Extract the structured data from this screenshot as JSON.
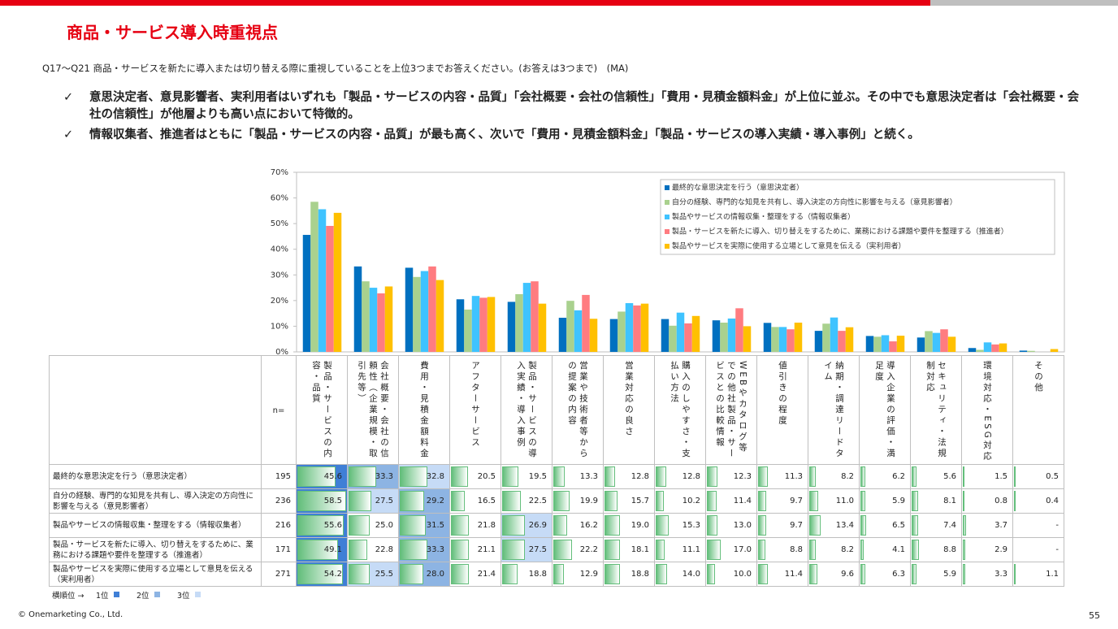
{
  "slide": {
    "title": "商品・サービス導入時重視点",
    "question": "Q17～Q21 商品・サービスを新たに導入または切り替える際に重視していることを上位3つまでお答えください。(お答えは3つまで)　(MA)",
    "bullets": [
      "意思決定者、意見影響者、実利用者はいずれも「製品・サービスの内容・品質」「会社概要・会社の信頼性」「費用・見積金額料金」が上位に並ぶ。その中でも意思決定者は「会社概要・会社の信頼性」が他層よりも高い点において特徴的。",
      "情報収集者、推進者はともに「製品・サービスの内容・品質」が最も高く、次いで「費用・見積金額料金」「製品・サービスの導入実績・導入事例」と続く。"
    ],
    "bullet_mark": "✓",
    "copyright": "© Onemarketing Co., Ltd.",
    "page_number": 55
  },
  "chart_data": {
    "type": "bar",
    "categories": [
      "製品・サービスの内容・品質",
      "会社概要・会社の信頼性（企業規模・取引先等）",
      "費用・見積金額料金",
      "アフターサービス",
      "製品・サービスの導入実績・導入事例",
      "営業や技術者等からの提案の内容",
      "営業対応の良さ",
      "購入のしやすさ・支払い方法",
      "WEBやカタログ等での他社製品・サービスとの比較情報",
      "値引きの程度",
      "納期・調達リードタイム",
      "導入企業の評価・満足度",
      "セキュリティ・法規制対応",
      "環境対応・ESG対応",
      "その他"
    ],
    "series": [
      {
        "name": "最終的な意思決定を行う（意思決定者）",
        "color": "#0070c0",
        "n": 195,
        "values": [
          45.6,
          33.3,
          32.8,
          20.5,
          19.5,
          13.3,
          12.8,
          12.8,
          12.3,
          11.3,
          8.2,
          6.2,
          5.6,
          1.5,
          0.5
        ],
        "value_labels": [
          "45.6",
          "33.3",
          "32.8",
          "20.5",
          "19.5",
          "13.3",
          "12.8",
          "12.8",
          "12.3",
          "11.3",
          "8.2",
          "6.2",
          "5.6",
          "1.5",
          "0.5"
        ]
      },
      {
        "name": "自分の経験、専門的な知見を共有し、導入決定の方向性に影響を与える（意見影響者）",
        "color": "#a9d18e",
        "n": 236,
        "values": [
          58.5,
          27.5,
          29.2,
          16.5,
          22.5,
          19.9,
          15.7,
          10.2,
          11.4,
          9.7,
          11.0,
          5.9,
          8.1,
          0.8,
          0.4
        ],
        "value_labels": [
          "58.5",
          "27.5",
          "29.2",
          "16.5",
          "22.5",
          "19.9",
          "15.7",
          "10.2",
          "11.4",
          "9.7",
          "11.0",
          "5.9",
          "8.1",
          "0.8",
          "0.4"
        ]
      },
      {
        "name": "製品やサービスの情報収集・整理をする（情報収集者）",
        "color": "#3fc3ff",
        "n": 216,
        "values": [
          55.6,
          25.0,
          31.5,
          21.8,
          26.9,
          16.2,
          19.0,
          15.3,
          13.0,
          9.7,
          13.4,
          6.5,
          7.4,
          3.7,
          null
        ],
        "value_labels": [
          "55.6",
          "25.0",
          "31.5",
          "21.8",
          "26.9",
          "16.2",
          "19.0",
          "15.3",
          "13.0",
          "9.7",
          "13.4",
          "6.5",
          "7.4",
          "3.7",
          "-"
        ]
      },
      {
        "name": "製品・サービスを新たに導入、切り替えをするために、業務における課題や要件を整理する（推進者）",
        "color": "#ff7c80",
        "n": 171,
        "values": [
          49.1,
          22.8,
          33.3,
          21.1,
          27.5,
          22.2,
          18.1,
          11.1,
          17.0,
          8.8,
          8.2,
          4.1,
          8.8,
          2.9,
          null
        ],
        "value_labels": [
          "49.1",
          "22.8",
          "33.3",
          "21.1",
          "27.5",
          "22.2",
          "18.1",
          "11.1",
          "17.0",
          "8.8",
          "8.2",
          "4.1",
          "8.8",
          "2.9",
          "-"
        ]
      },
      {
        "name": "製品やサービスを実際に使用する立場として意見を伝える（実利用者）",
        "color": "#ffc000",
        "n": 271,
        "values": [
          54.2,
          25.5,
          28.0,
          21.4,
          18.8,
          12.9,
          18.8,
          14.0,
          10.0,
          11.4,
          9.6,
          6.3,
          5.9,
          3.3,
          1.1
        ],
        "value_labels": [
          "54.2",
          "25.5",
          "28.0",
          "21.4",
          "18.8",
          "12.9",
          "18.8",
          "14.0",
          "10.0",
          "11.4",
          "9.6",
          "6.3",
          "5.9",
          "3.3",
          "1.1"
        ]
      }
    ],
    "ylim": [
      0,
      70
    ],
    "yticks": [
      {
        "value": 0,
        "label": "0%"
      },
      {
        "value": 10,
        "label": "10%"
      },
      {
        "value": 20,
        "label": "20%"
      },
      {
        "value": 30,
        "label": "30%"
      },
      {
        "value": 40,
        "label": "40%"
      },
      {
        "value": 50,
        "label": "50%"
      },
      {
        "value": 60,
        "label": "60%"
      },
      {
        "value": 70,
        "label": "70%"
      }
    ],
    "grid": false,
    "legend": "upper right",
    "n_header": "n=",
    "rank_legend": {
      "label": "横順位 →",
      "ranks": [
        {
          "label": "1位",
          "color": "#3f7fd6"
        },
        {
          "label": "2位",
          "color": "#8db4e3"
        },
        {
          "label": "3位",
          "color": "#c6dbf6"
        }
      ]
    }
  }
}
